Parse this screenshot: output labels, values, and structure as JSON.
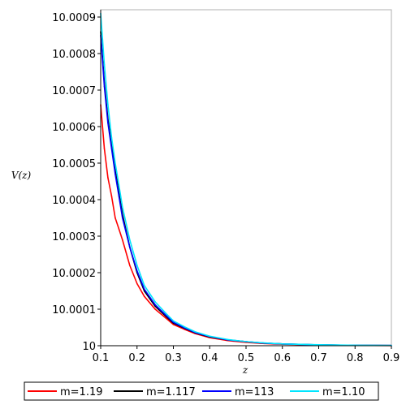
{
  "chart_data": {
    "type": "line",
    "title": "",
    "xlabel": "z",
    "ylabel": "V(z)",
    "xlim": [
      0.1,
      0.9
    ],
    "ylim": [
      10.0,
      10.00092
    ],
    "grid": false,
    "legend_position": "bottom",
    "x_ticks": [
      0.1,
      0.2,
      0.3,
      0.4,
      0.5,
      0.6,
      0.7,
      0.8,
      0.9
    ],
    "x_tick_labels": [
      "0.1",
      "0.2",
      "0.3",
      "0.4",
      "0.5",
      "0.6",
      "0.7",
      "0.8",
      "0.9"
    ],
    "y_ticks": [
      10.0,
      10.0001,
      10.0002,
      10.0003,
      10.0004,
      10.0005,
      10.0006,
      10.0007,
      10.0008,
      10.0009
    ],
    "y_tick_labels": [
      "10",
      "10.0001",
      "10.0002",
      "10.0003",
      "10.0004",
      "10.0005",
      "10.0006",
      "10.0007",
      "10.0008",
      "10.0009"
    ],
    "series": [
      {
        "name": "m=1.19",
        "color": "#ff0000",
        "x": [
          0.1,
          0.11,
          0.12,
          0.13,
          0.14,
          0.15,
          0.16,
          0.18,
          0.2,
          0.22,
          0.25,
          0.28,
          0.3,
          0.33,
          0.36,
          0.4,
          0.45,
          0.5,
          0.55,
          0.6,
          0.7,
          0.8,
          0.9
        ],
        "y": [
          10.00066,
          10.00054,
          10.00046,
          10.00041,
          10.00035,
          10.00032,
          10.00029,
          10.00022,
          10.00017,
          10.000135,
          10.0001,
          10.000075,
          10.000058,
          10.000045,
          10.000033,
          10.000022,
          10.000014,
          10.000009,
          10.000006,
          10.000004,
          10.000002,
          10.000001,
          10.0000005
        ]
      },
      {
        "name": "m=1.117",
        "color": "#000000",
        "x": [
          0.1,
          0.11,
          0.12,
          0.13,
          0.14,
          0.15,
          0.16,
          0.18,
          0.2,
          0.22,
          0.25,
          0.28,
          0.3,
          0.33,
          0.36,
          0.4,
          0.45,
          0.5,
          0.55,
          0.6,
          0.7,
          0.8,
          0.9
        ],
        "y": [
          10.00086,
          10.00072,
          10.00062,
          10.00055,
          10.00048,
          10.00042,
          10.00036,
          10.00027,
          10.0002,
          10.00015,
          10.000108,
          10.00008,
          10.000062,
          10.000048,
          10.000035,
          10.000024,
          10.000016,
          10.000011,
          10.000007,
          10.000005,
          10.0000025,
          10.0000012,
          10.0000006
        ]
      },
      {
        "name": "m=113",
        "color": "#0000ff",
        "x": [
          0.1,
          0.11,
          0.12,
          0.13,
          0.14,
          0.15,
          0.16,
          0.18,
          0.2,
          0.22,
          0.25,
          0.28,
          0.3,
          0.33,
          0.36,
          0.4,
          0.45,
          0.5,
          0.55,
          0.6,
          0.7,
          0.8,
          0.9
        ],
        "y": [
          10.00085,
          10.00071,
          10.00061,
          10.00054,
          10.00047,
          10.00041,
          10.00035,
          10.00027,
          10.000205,
          10.000155,
          10.000112,
          10.000083,
          10.000064,
          10.000049,
          10.000036,
          10.000025,
          10.000016,
          10.000011,
          10.000007,
          10.000005,
          10.0000025,
          10.0000012,
          10.0000006
        ]
      },
      {
        "name": "m=1.10",
        "color": "#00e5ff",
        "x": [
          0.1,
          0.11,
          0.12,
          0.13,
          0.14,
          0.15,
          0.16,
          0.18,
          0.2,
          0.22,
          0.25,
          0.28,
          0.3,
          0.33,
          0.36,
          0.4,
          0.45,
          0.5,
          0.55,
          0.6,
          0.7,
          0.8,
          0.9
        ],
        "y": [
          10.00091,
          10.00077,
          10.00066,
          10.00057,
          10.0005,
          10.00044,
          10.00038,
          10.00029,
          10.00022,
          10.000165,
          10.00012,
          10.000088,
          10.000068,
          10.000052,
          10.000038,
          10.000026,
          10.000017,
          10.000011,
          10.0000075,
          10.000005,
          10.0000026,
          10.0000013,
          10.0000007
        ]
      }
    ]
  }
}
